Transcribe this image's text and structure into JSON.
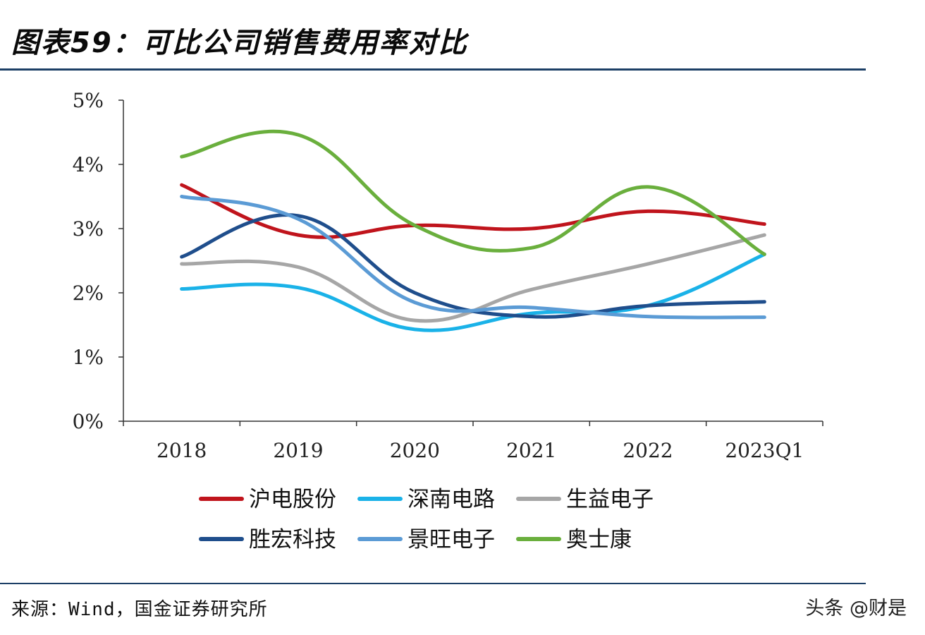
{
  "title": "图表59：可比公司销售费用率对比",
  "source": "来源：Wind，国金证券研究所",
  "watermark": "头条 @财是",
  "chart_data": {
    "type": "line",
    "title": "图表59：可比公司销售费用率对比",
    "xlabel": "",
    "ylabel": "",
    "categories": [
      "2018",
      "2019",
      "2020",
      "2021",
      "2022",
      "2023Q1"
    ],
    "y_ticks": [
      "0%",
      "1%",
      "2%",
      "3%",
      "4%",
      "5%"
    ],
    "ylim": [
      0,
      5
    ],
    "legend_position": "bottom",
    "series": [
      {
        "name": "沪电股份",
        "color": "#c0141c",
        "values": [
          3.68,
          2.9,
          3.05,
          3.0,
          3.27,
          3.07
        ]
      },
      {
        "name": "深南电路",
        "color": "#1ab2e8",
        "values": [
          2.06,
          2.08,
          1.43,
          1.68,
          1.8,
          2.6
        ]
      },
      {
        "name": "生益电子",
        "color": "#a6a6a6",
        "values": [
          2.45,
          2.4,
          1.57,
          2.05,
          2.45,
          2.9
        ]
      },
      {
        "name": "胜宏科技",
        "color": "#1f4e8c",
        "values": [
          2.56,
          3.2,
          2.0,
          1.63,
          1.8,
          1.86
        ]
      },
      {
        "name": "景旺电子",
        "color": "#5b9bd5",
        "values": [
          3.5,
          3.15,
          1.85,
          1.77,
          1.63,
          1.62
        ]
      },
      {
        "name": "奥士康",
        "color": "#6aaf3d",
        "values": [
          4.12,
          4.46,
          3.05,
          2.7,
          3.65,
          2.6
        ]
      }
    ]
  }
}
